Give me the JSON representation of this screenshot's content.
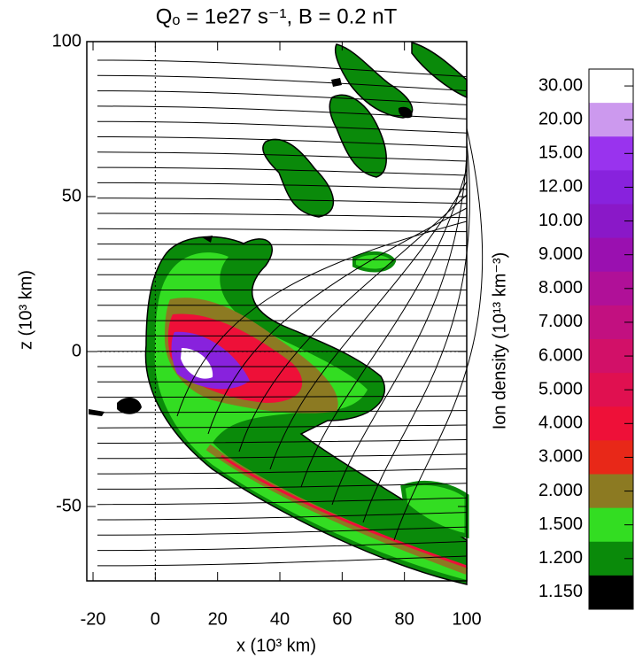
{
  "chart_data": {
    "type": "contour",
    "title": "Qₒ = 1e27 s⁻¹, B = 0.2 nT",
    "x_label": "x (10³ km)",
    "y_label": "z (10³ km)",
    "xlim": [
      -22,
      100
    ],
    "ylim": [
      -74,
      100
    ],
    "xticks": [
      -20,
      0,
      20,
      40,
      60,
      80,
      100
    ],
    "yticks": [
      -50,
      0,
      50,
      100
    ],
    "colorbar": {
      "label": "Ion density (10¹³ km⁻³)",
      "levels": [
        {
          "value": 30,
          "label": "30.00"
        },
        {
          "value": 20,
          "label": "20.00"
        },
        {
          "value": 15,
          "label": "15.00"
        },
        {
          "value": 12,
          "label": "12.00"
        },
        {
          "value": 10,
          "label": "10.00"
        },
        {
          "value": 9,
          "label": "9.000"
        },
        {
          "value": 8,
          "label": "8.000"
        },
        {
          "value": 7,
          "label": "7.000"
        },
        {
          "value": 6,
          "label": "6.000"
        },
        {
          "value": 5,
          "label": "5.000"
        },
        {
          "value": 4,
          "label": "4.000"
        },
        {
          "value": 3,
          "label": "3.000"
        },
        {
          "value": 2,
          "label": "2.000"
        },
        {
          "value": 1.5,
          "label": "1.500"
        },
        {
          "value": 1.2,
          "label": "1.200"
        },
        {
          "value": 1.15,
          "label": "1.150"
        }
      ],
      "colors": [
        "#ffffff",
        "#cc99ee",
        "#9933ee",
        "#8822dd",
        "#8a18c8",
        "#9a10b0",
        "#b01098",
        "#c21080",
        "#d21068",
        "#e01050",
        "#ee1038",
        "#e82818",
        "#8c7a22",
        "#33dd22",
        "#0a8a0a",
        "#000000"
      ]
    }
  }
}
